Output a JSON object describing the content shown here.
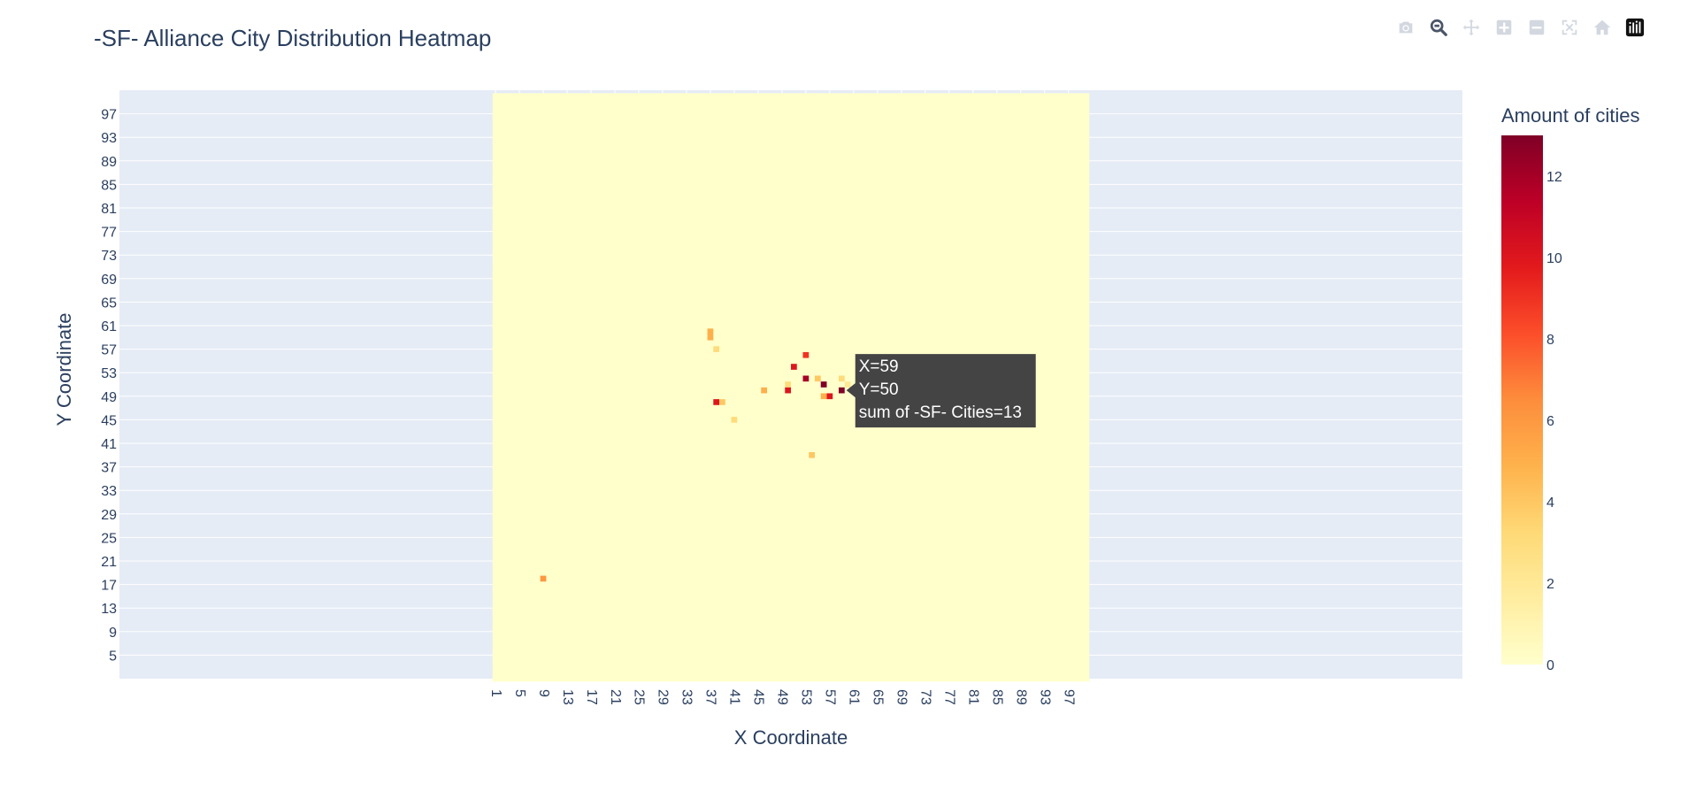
{
  "page": {
    "title": "-SF- Alliance City Distribution Heatmap"
  },
  "modebar": {
    "buttons": [
      {
        "name": "camera-icon",
        "active": false
      },
      {
        "name": "zoom-icon",
        "active": true
      },
      {
        "name": "pan-icon",
        "active": false
      },
      {
        "name": "zoom-in-icon",
        "active": false
      },
      {
        "name": "zoom-out-icon",
        "active": false
      },
      {
        "name": "autoscale-icon",
        "active": false
      },
      {
        "name": "home-icon",
        "active": false
      },
      {
        "name": "plotly-logo-icon",
        "active": false
      }
    ]
  },
  "chart_data": {
    "type": "heatmap",
    "title": "-SF- Alliance City Distribution Heatmap",
    "xlabel": "X Coordinate",
    "ylabel": "Y Coordinate",
    "colorbar_title": "Amount of cities",
    "colorscale": "YlOrRd",
    "colors": [
      "#ffffcc",
      "#ffeda0",
      "#fed976",
      "#feb24c",
      "#fd8d3c",
      "#fc4e2a",
      "#e31a1c",
      "#bd0026",
      "#800026"
    ],
    "zmin": 0,
    "zmax": 13,
    "colorbar_ticks": [
      "0",
      "2",
      "4",
      "6",
      "8",
      "10",
      "12"
    ],
    "xlim": [
      -62,
      163
    ],
    "ylim": [
      1,
      101
    ],
    "heatmap_x_range": [
      1,
      100
    ],
    "heatmap_y_range": [
      1,
      100
    ],
    "x_ticks": [
      "1",
      "5",
      "9",
      "13",
      "17",
      "21",
      "25",
      "29",
      "33",
      "37",
      "41",
      "45",
      "49",
      "53",
      "57",
      "61",
      "65",
      "69",
      "73",
      "77",
      "81",
      "85",
      "89",
      "93",
      "97"
    ],
    "y_ticks": [
      "5",
      "9",
      "13",
      "17",
      "21",
      "25",
      "29",
      "33",
      "37",
      "41",
      "45",
      "49",
      "53",
      "57",
      "61",
      "65",
      "69",
      "73",
      "77",
      "81",
      "85",
      "89",
      "93",
      "97"
    ],
    "grid": true,
    "cells": [
      {
        "x": 37,
        "y": 60,
        "z": 5
      },
      {
        "x": 37,
        "y": 59,
        "z": 5
      },
      {
        "x": 38,
        "y": 57,
        "z": 3
      },
      {
        "x": 38,
        "y": 48,
        "z": 10
      },
      {
        "x": 39,
        "y": 48,
        "z": 4
      },
      {
        "x": 41,
        "y": 45,
        "z": 3
      },
      {
        "x": 46,
        "y": 50,
        "z": 5
      },
      {
        "x": 50,
        "y": 51,
        "z": 3
      },
      {
        "x": 50,
        "y": 50,
        "z": 10
      },
      {
        "x": 51,
        "y": 54,
        "z": 10
      },
      {
        "x": 53,
        "y": 56,
        "z": 9
      },
      {
        "x": 53,
        "y": 52,
        "z": 12
      },
      {
        "x": 54,
        "y": 39,
        "z": 4
      },
      {
        "x": 55,
        "y": 52,
        "z": 4
      },
      {
        "x": 56,
        "y": 51,
        "z": 13
      },
      {
        "x": 56,
        "y": 49,
        "z": 5
      },
      {
        "x": 57,
        "y": 49,
        "z": 10
      },
      {
        "x": 59,
        "y": 52,
        "z": 3
      },
      {
        "x": 59,
        "y": 50,
        "z": 13
      },
      {
        "x": 60,
        "y": 51,
        "z": 2
      },
      {
        "x": 9,
        "y": 18,
        "z": 6
      }
    ],
    "hover": {
      "lines": [
        "X=59",
        "Y=50",
        "sum of -SF- Cities=13"
      ]
    }
  }
}
